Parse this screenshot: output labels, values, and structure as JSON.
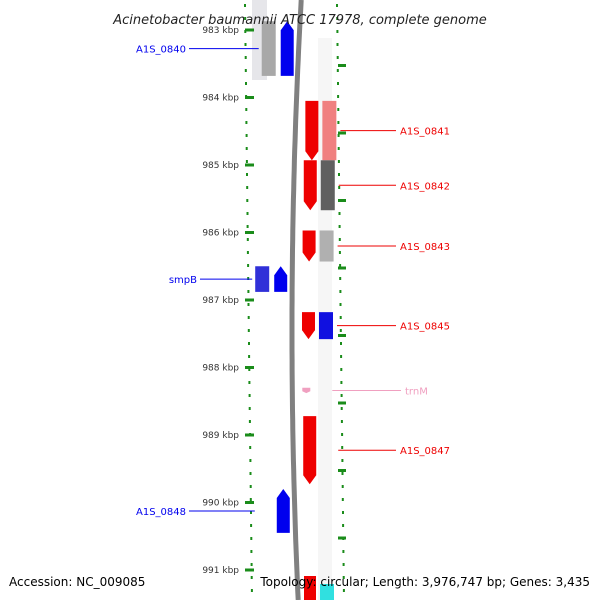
{
  "title": "Acinetobacter baumannii ATCC 17978, complete genome",
  "footer": {
    "accession": "Accession: NC_009085",
    "summary": "Topology: circular; Length: 3,976,747 bp; Genes: 3,435"
  },
  "ticks": [
    "983 kbp",
    "984 kbp",
    "985 kbp",
    "986 kbp",
    "987 kbp",
    "988 kbp",
    "989 kbp",
    "990 kbp",
    "991 kbp"
  ],
  "genes": [
    {
      "label": "A1S_0840",
      "strand": "minus",
      "start_kbp": 982.87,
      "end_kbp": 983.68,
      "color": "#0000ee"
    },
    {
      "label": "smpB",
      "strand": "minus",
      "start_kbp": 986.5,
      "end_kbp": 986.88,
      "color": "#0000ee"
    },
    {
      "label": "A1S_0848",
      "strand": "minus",
      "start_kbp": 989.8,
      "end_kbp": 990.45,
      "color": "#0000ee"
    },
    {
      "label": "A1S_0841",
      "strand": "plus",
      "start_kbp": 984.05,
      "end_kbp": 984.93,
      "color": "#ee0000"
    },
    {
      "label": "A1S_0842",
      "strand": "plus",
      "start_kbp": 984.93,
      "end_kbp": 985.67,
      "color": "#ee0000"
    },
    {
      "label": "A1S_0843",
      "strand": "plus",
      "start_kbp": 985.97,
      "end_kbp": 986.43,
      "color": "#ee0000"
    },
    {
      "label": "A1S_0845",
      "strand": "plus",
      "start_kbp": 987.18,
      "end_kbp": 987.58,
      "color": "#ee0000"
    },
    {
      "label": "trnM",
      "strand": "plus",
      "start_kbp": 988.3,
      "end_kbp": 988.38,
      "color": "#f0a0c0"
    },
    {
      "label": "A1S_0847",
      "strand": "plus",
      "start_kbp": 988.72,
      "end_kbp": 989.73,
      "color": "#ee0000"
    }
  ],
  "feature_colors": {
    "cds_plus": "#ee0000",
    "cds_minus": "#0000ee",
    "trna": "#f0a0c0",
    "backbone": "#808080",
    "tick_mark": "#1a8c1a"
  }
}
